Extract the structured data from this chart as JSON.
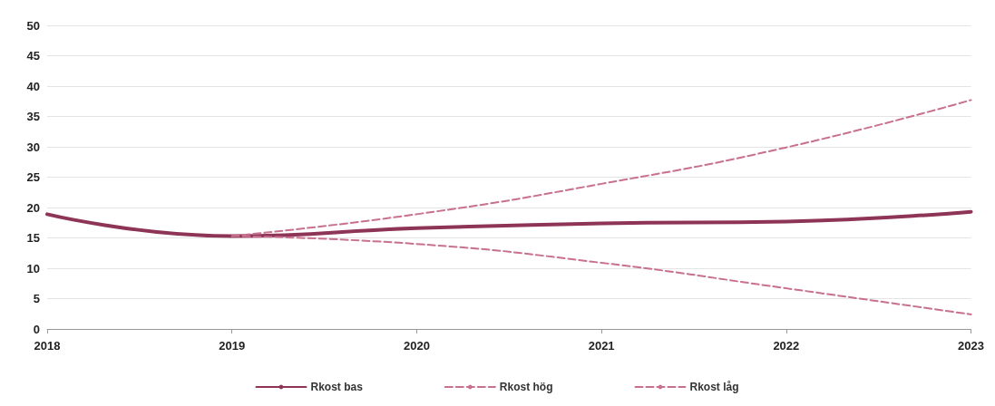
{
  "chart_data": {
    "type": "line",
    "categories": [
      "2018",
      "2019",
      "2020",
      "2021",
      "2022",
      "2023"
    ],
    "series": [
      {
        "name": "Rkost bas",
        "color": "#8e3456",
        "values": [
          18.9,
          15.3,
          16.6,
          17.4,
          17.7,
          19.3
        ],
        "line_style": "solid"
      },
      {
        "name": "Rkost hög",
        "color": "#c8708e",
        "values": [
          null,
          15.3,
          18.9,
          23.9,
          29.9,
          37.7
        ],
        "line_style": "dashed"
      },
      {
        "name": "Rkost låg",
        "color": "#c8708e",
        "values": [
          null,
          15.3,
          14.0,
          10.9,
          6.7,
          2.4
        ],
        "line_style": "dashed"
      }
    ],
    "ylim": [
      0,
      50
    ],
    "yticks": [
      0,
      5,
      10,
      15,
      20,
      25,
      30,
      35,
      40,
      45,
      50
    ],
    "grid": "y",
    "legend": "bottom",
    "marker": "none"
  }
}
